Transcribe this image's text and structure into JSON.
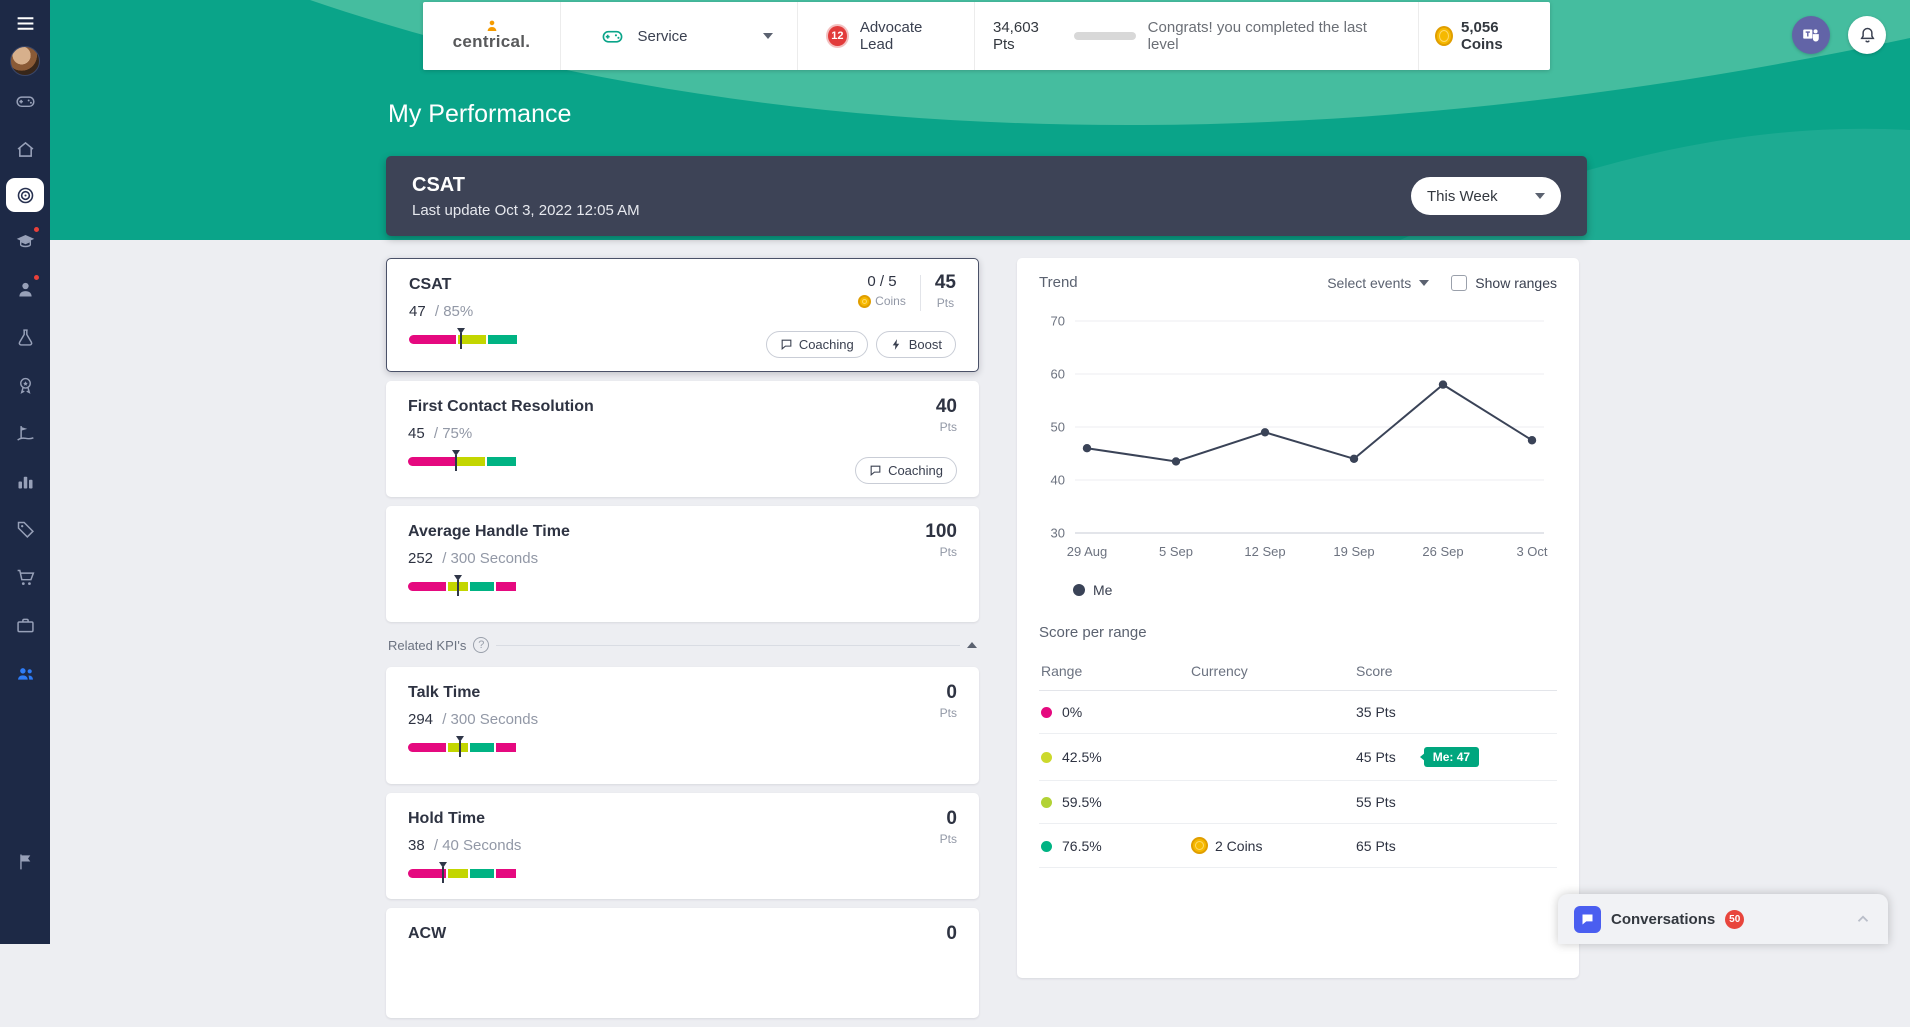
{
  "theme": {
    "green": "#0aa489",
    "green_light": "#45bd9f",
    "sidebar": "#1d2946",
    "banner": "#3d4356",
    "magenta": "#e5097f",
    "lime": "#c3d600",
    "kpi_green": "#00b383",
    "purple": "#6264a7",
    "red": "#e8453c"
  },
  "sidebar": {
    "icons": [
      "hamburger",
      "avatar",
      "gamepad",
      "home",
      "target",
      "graduation-cap",
      "person",
      "flask",
      "rosette",
      "golf-flag",
      "bar-chart",
      "tag",
      "cart",
      "briefcase",
      "people",
      "flag"
    ],
    "active": "target"
  },
  "header": {
    "brand": "centrical.",
    "service_label": "Service",
    "advocate_badge": "12",
    "advocate_label": "Advocate Lead",
    "points_value": "34,603 Pts",
    "congrats_text": "Congrats! you completed the last level",
    "coins_value": "5,056 Coins"
  },
  "page_title": "My Performance",
  "banner": {
    "title": "CSAT",
    "subtitle": "Last update Oct 3, 2022 12:05 AM",
    "period": "This Week"
  },
  "kpi_selected": {
    "title": "CSAT",
    "value": "47",
    "target": "/ 85%",
    "coins": "0 / 5",
    "coins_label": "Coins",
    "pts": "45",
    "pts_label": "Pts",
    "coaching_label": "Coaching",
    "boost_label": "Boost",
    "marker_pct": 48
  },
  "kpis": [
    {
      "title": "First Contact Resolution",
      "value": "45",
      "target": "/ 75%",
      "pts": "40",
      "pts_label": "Pts",
      "coaching_label": "Coaching",
      "marker_pct": 44
    },
    {
      "title": "Average Handle Time",
      "value": "252",
      "target": "/ 300 Seconds",
      "pts": "100",
      "pts_label": "Pts",
      "marker_pct": 46
    },
    {
      "title": "Talk Time",
      "value": "294",
      "target": "/ 300 Seconds",
      "pts": "0",
      "pts_label": "Pts",
      "marker_pct": 48
    },
    {
      "title": "Hold Time",
      "value": "38",
      "target": "/ 40 Seconds",
      "pts": "0",
      "pts_label": "Pts",
      "marker_pct": 32
    },
    {
      "title": "ACW",
      "pts": "0"
    }
  ],
  "related": {
    "label": "Related KPI's",
    "help": "?"
  },
  "trend": {
    "title": "Trend",
    "select_events": "Select events",
    "show_ranges": "Show ranges",
    "legend_me": "Me"
  },
  "chart_data": {
    "type": "line",
    "title": "Trend",
    "x": [
      "29 Aug",
      "5 Sep",
      "12 Sep",
      "19 Sep",
      "26 Sep",
      "3 Oct"
    ],
    "series": [
      {
        "name": "Me",
        "values": [
          46,
          43.5,
          49,
          44,
          58,
          47.5
        ]
      }
    ],
    "ylim": [
      30,
      70
    ],
    "yticks": [
      30,
      40,
      50,
      60,
      70
    ],
    "grid": true,
    "line_color": "#3a4357",
    "legend_position": "bottom-left"
  },
  "score": {
    "title": "Score per range",
    "columns": [
      "Range",
      "Currency",
      "Score"
    ],
    "rows": [
      {
        "dot": "#e5097f",
        "range": "0%",
        "currency": "",
        "score": "35 Pts"
      },
      {
        "dot": "#ccd92c",
        "range": "42.5%",
        "currency": "",
        "score": "45 Pts",
        "me_badge": "Me: 47"
      },
      {
        "dot": "#b2d235",
        "range": "59.5%",
        "currency": "",
        "score": "55 Pts"
      },
      {
        "dot": "#00b383",
        "range": "76.5%",
        "currency": "2 Coins",
        "score": "65 Pts"
      }
    ]
  },
  "conversations": {
    "label": "Conversations",
    "badge": "50"
  }
}
